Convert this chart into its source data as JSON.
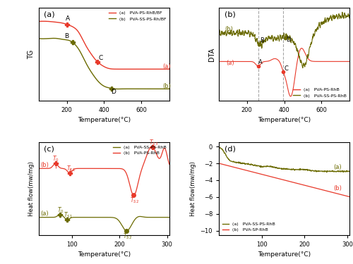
{
  "fig_bg": "#ffffff",
  "panel_bg": "#ffffff",
  "red_color": "#e8392a",
  "olive_color": "#6b6b00",
  "panel_labels": [
    "(a)",
    "(b)",
    "(c)",
    "(d)"
  ],
  "tg": {
    "xlabel": "Temperature(°C)",
    "ylabel": "TG",
    "xlim": [
      50,
      750
    ],
    "legend_a": "(a)   PVA-PS-RhB/BF",
    "legend_b": "(b)   PVA-SS-PS-Rh/BF"
  },
  "dta": {
    "xlabel": "Temperature(°C)",
    "ylabel": "DTA",
    "xlim": [
      50,
      750
    ],
    "legend_a": "(a)   PVA-PS-RhB",
    "legend_b": "(b)   PVA-SS-PS-RhB",
    "vline1": 260,
    "vline2": 395
  },
  "dsc": {
    "xlabel": "Temperature(°C)",
    "ylabel": "Heat flow(mw/mg)",
    "xlim": [
      30,
      305
    ],
    "legend_a": "(a)   PVA-SS-PS-RhB",
    "legend_b": "(b)   PVA-PS-RhB"
  },
  "dsc2": {
    "xlabel": "Temperature(°C)",
    "ylabel": "Heat flow(mw/mg)",
    "xlim": [
      0,
      305
    ],
    "ylim": [
      -10.5,
      0.5
    ],
    "legend_a": "(a)   PVA-SS-PS-RhB",
    "legend_b": "(b)   PVA-SP-RhB"
  }
}
